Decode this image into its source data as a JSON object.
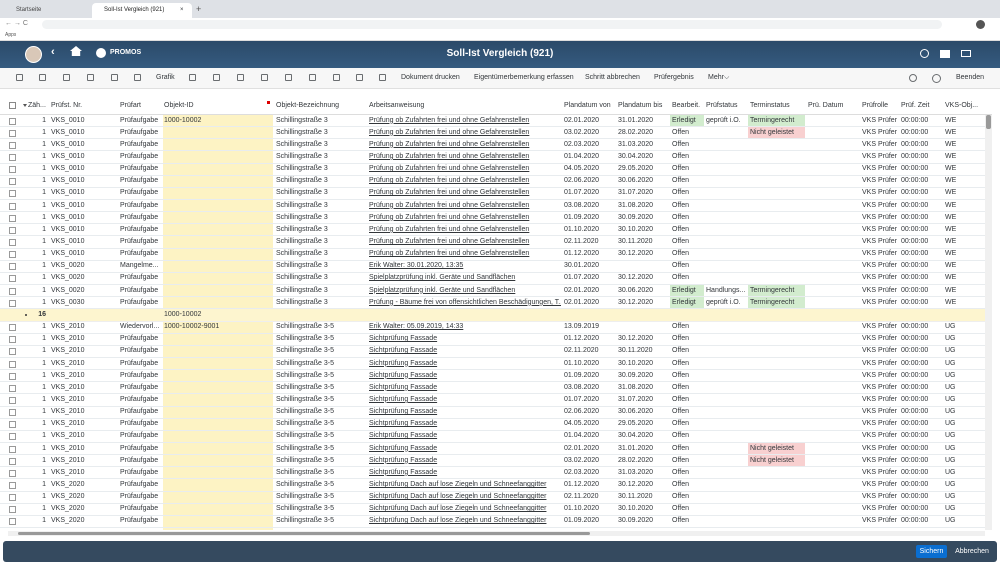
{
  "browser": {
    "tabs": [
      "Startseite",
      "Soll-Ist Vergleich (921)"
    ],
    "bookmark": "Apps"
  },
  "shell": {
    "logo": "PROMOS",
    "title": "Soll-Ist Vergleich (921)"
  },
  "toolbar": {
    "buttons": [
      "Grafik",
      "Dokument drucken",
      "Eigentümerbemerkung erfassen",
      "Schritt abbrechen",
      "Prüfergebnis"
    ],
    "more": "Mehr",
    "exit": "Beenden"
  },
  "table": {
    "columns": [
      "Zäh...",
      "Prüfst. Nr.",
      "Prüfart",
      "Objekt-ID",
      "Objekt-Bezeichnung",
      "Arbeitsanweisung",
      "Plandatum von",
      "Plandatum bis",
      "Bearbeit.",
      "Prüfstatus",
      "Terminstatus",
      "Prü. Datum",
      "Prüfrolle",
      "Prüf. Zeit",
      "VKS-Obj..."
    ],
    "cell_colors": {
      "Erledigt": "#d2ecce",
      "Termingerecht": "#d2ecce",
      "Nicht geleistet": "#f8d0d0"
    },
    "groups": [
      {
        "rows": [
          [
            "1",
            "VKS_0010",
            "Prüfaufgabe",
            "1000-10002",
            "Schillingstraße 3",
            "Prüfung ob Zufahrten frei und ohne Gefahrenstellen",
            "02.01.2020",
            "31.01.2020",
            "Erledigt",
            "geprüft i.O.",
            "Termingerecht",
            null,
            "VKS Prüfer",
            "00:00:00",
            "WE"
          ],
          [
            "1",
            "VKS_0010",
            "Prüfaufgabe",
            null,
            "Schillingstraße 3",
            "Prüfung ob Zufahrten frei und ohne Gefahrenstellen",
            "03.02.2020",
            "28.02.2020",
            "Offen",
            null,
            "Nicht geleistet",
            null,
            "VKS Prüfer",
            "00:00:00",
            "WE"
          ],
          [
            "1",
            "VKS_0010",
            "Prüfaufgabe",
            null,
            "Schillingstraße 3",
            "Prüfung ob Zufahrten frei und ohne Gefahrenstellen",
            "02.03.2020",
            "31.03.2020",
            "Offen",
            null,
            null,
            null,
            "VKS Prüfer",
            "00:00:00",
            "WE"
          ],
          [
            "1",
            "VKS_0010",
            "Prüfaufgabe",
            null,
            "Schillingstraße 3",
            "Prüfung ob Zufahrten frei und ohne Gefahrenstellen",
            "01.04.2020",
            "30.04.2020",
            "Offen",
            null,
            null,
            null,
            "VKS Prüfer",
            "00:00:00",
            "WE"
          ],
          [
            "1",
            "VKS_0010",
            "Prüfaufgabe",
            null,
            "Schillingstraße 3",
            "Prüfung ob Zufahrten frei und ohne Gefahrenstellen",
            "04.05.2020",
            "29.05.2020",
            "Offen",
            null,
            null,
            null,
            "VKS Prüfer",
            "00:00:00",
            "WE"
          ],
          [
            "1",
            "VKS_0010",
            "Prüfaufgabe",
            null,
            "Schillingstraße 3",
            "Prüfung ob Zufahrten frei und ohne Gefahrenstellen",
            "02.06.2020",
            "30.06.2020",
            "Offen",
            null,
            null,
            null,
            "VKS Prüfer",
            "00:00:00",
            "WE"
          ],
          [
            "1",
            "VKS_0010",
            "Prüfaufgabe",
            null,
            "Schillingstraße 3",
            "Prüfung ob Zufahrten frei und ohne Gefahrenstellen",
            "01.07.2020",
            "31.07.2020",
            "Offen",
            null,
            null,
            null,
            "VKS Prüfer",
            "00:00:00",
            "WE"
          ],
          [
            "1",
            "VKS_0010",
            "Prüfaufgabe",
            null,
            "Schillingstraße 3",
            "Prüfung ob Zufahrten frei und ohne Gefahrenstellen",
            "03.08.2020",
            "31.08.2020",
            "Offen",
            null,
            null,
            null,
            "VKS Prüfer",
            "00:00:00",
            "WE"
          ],
          [
            "1",
            "VKS_0010",
            "Prüfaufgabe",
            null,
            "Schillingstraße 3",
            "Prüfung ob Zufahrten frei und ohne Gefahrenstellen",
            "01.09.2020",
            "30.09.2020",
            "Offen",
            null,
            null,
            null,
            "VKS Prüfer",
            "00:00:00",
            "WE"
          ],
          [
            "1",
            "VKS_0010",
            "Prüfaufgabe",
            null,
            "Schillingstraße 3",
            "Prüfung ob Zufahrten frei und ohne Gefahrenstellen",
            "01.10.2020",
            "30.10.2020",
            "Offen",
            null,
            null,
            null,
            "VKS Prüfer",
            "00:00:00",
            "WE"
          ],
          [
            "1",
            "VKS_0010",
            "Prüfaufgabe",
            null,
            "Schillingstraße 3",
            "Prüfung ob Zufahrten frei und ohne Gefahrenstellen",
            "02.11.2020",
            "30.11.2020",
            "Offen",
            null,
            null,
            null,
            "VKS Prüfer",
            "00:00:00",
            "WE"
          ],
          [
            "1",
            "VKS_0010",
            "Prüfaufgabe",
            null,
            "Schillingstraße 3",
            "Prüfung ob Zufahrten frei und ohne Gefahrenstellen",
            "01.12.2020",
            "30.12.2020",
            "Offen",
            null,
            null,
            null,
            "VKS Prüfer",
            "00:00:00",
            "WE"
          ],
          [
            "1",
            "VKS_0020",
            "Mangelme...",
            null,
            "Schillingstraße 3",
            "Erik Walter: 30.01.2020, 13:35",
            "30.01.2020",
            null,
            "Offen",
            null,
            null,
            null,
            "VKS Prüfer",
            "00:00:00",
            "WE"
          ],
          [
            "1",
            "VKS_0020",
            "Prüfaufgabe",
            null,
            "Schillingstraße 3",
            "Spielplatzprüfung inkl. Geräte und Sandflächen",
            "01.07.2020",
            "30.12.2020",
            "Offen",
            null,
            null,
            null,
            "VKS Prüfer",
            "00:00:00",
            "WE"
          ],
          [
            "1",
            "VKS_0020",
            "Prüfaufgabe",
            null,
            "Schillingstraße 3",
            "Spielplatzprüfung inkl. Geräte und Sandflächen",
            "02.01.2020",
            "30.06.2020",
            "Erledigt",
            "Handlungs...",
            "Termingerecht",
            null,
            "VKS Prüfer",
            "00:00:00",
            "WE"
          ],
          [
            "1",
            "VKS_0030",
            "Prüfaufgabe",
            null,
            "Schillingstraße 3",
            "Prüfung - Bäume frei von offensichtlichen Beschädigungen, T...",
            "02.01.2020",
            "30.12.2020",
            "Erledigt",
            "geprüft i.O.",
            "Termingerecht",
            null,
            "VKS Prüfer",
            "00:00:00",
            "WE"
          ]
        ]
      },
      {
        "count": "16",
        "object_id": "1000-10002",
        "rows": [
          [
            "1",
            "VKS_2010",
            "Wiedervorl...",
            "1000-10002-9001",
            "Schillingstraße 3-5",
            "Erik Walter: 05.09.2019, 14:33",
            "13.09.2019",
            null,
            "Offen",
            null,
            null,
            null,
            "VKS Prüfer",
            "00:00:00",
            "UG"
          ],
          [
            "1",
            "VKS_2010",
            "Prüfaufgabe",
            null,
            "Schillingstraße 3-5",
            "Sichtprüfung Fassade",
            "01.12.2020",
            "30.12.2020",
            "Offen",
            null,
            null,
            null,
            "VKS Prüfer",
            "00:00:00",
            "UG"
          ],
          [
            "1",
            "VKS_2010",
            "Prüfaufgabe",
            null,
            "Schillingstraße 3-5",
            "Sichtprüfung Fassade",
            "02.11.2020",
            "30.11.2020",
            "Offen",
            null,
            null,
            null,
            "VKS Prüfer",
            "00:00:00",
            "UG"
          ],
          [
            "1",
            "VKS_2010",
            "Prüfaufgabe",
            null,
            "Schillingstraße 3-5",
            "Sichtprüfung Fassade",
            "01.10.2020",
            "30.10.2020",
            "Offen",
            null,
            null,
            null,
            "VKS Prüfer",
            "00:00:00",
            "UG"
          ],
          [
            "1",
            "VKS_2010",
            "Prüfaufgabe",
            null,
            "Schillingstraße 3-5",
            "Sichtprüfung Fassade",
            "01.09.2020",
            "30.09.2020",
            "Offen",
            null,
            null,
            null,
            "VKS Prüfer",
            "00:00:00",
            "UG"
          ],
          [
            "1",
            "VKS_2010",
            "Prüfaufgabe",
            null,
            "Schillingstraße 3-5",
            "Sichtprüfung Fassade",
            "03.08.2020",
            "31.08.2020",
            "Offen",
            null,
            null,
            null,
            "VKS Prüfer",
            "00:00:00",
            "UG"
          ],
          [
            "1",
            "VKS_2010",
            "Prüfaufgabe",
            null,
            "Schillingstraße 3-5",
            "Sichtprüfung Fassade",
            "01.07.2020",
            "31.07.2020",
            "Offen",
            null,
            null,
            null,
            "VKS Prüfer",
            "00:00:00",
            "UG"
          ],
          [
            "1",
            "VKS_2010",
            "Prüfaufgabe",
            null,
            "Schillingstraße 3-5",
            "Sichtprüfung Fassade",
            "02.06.2020",
            "30.06.2020",
            "Offen",
            null,
            null,
            null,
            "VKS Prüfer",
            "00:00:00",
            "UG"
          ],
          [
            "1",
            "VKS_2010",
            "Prüfaufgabe",
            null,
            "Schillingstraße 3-5",
            "Sichtprüfung Fassade",
            "04.05.2020",
            "29.05.2020",
            "Offen",
            null,
            null,
            null,
            "VKS Prüfer",
            "00:00:00",
            "UG"
          ],
          [
            "1",
            "VKS_2010",
            "Prüfaufgabe",
            null,
            "Schillingstraße 3-5",
            "Sichtprüfung Fassade",
            "01.04.2020",
            "30.04.2020",
            "Offen",
            null,
            null,
            null,
            "VKS Prüfer",
            "00:00:00",
            "UG"
          ],
          [
            "1",
            "VKS_2010",
            "Prüfaufgabe",
            null,
            "Schillingstraße 3-5",
            "Sichtprüfung Fassade",
            "02.01.2020",
            "31.01.2020",
            "Offen",
            null,
            "Nicht geleistet",
            null,
            "VKS Prüfer",
            "00:00:00",
            "UG"
          ],
          [
            "1",
            "VKS_2010",
            "Prüfaufgabe",
            null,
            "Schillingstraße 3-5",
            "Sichtprüfung Fassade",
            "03.02.2020",
            "28.02.2020",
            "Offen",
            null,
            "Nicht geleistet",
            null,
            "VKS Prüfer",
            "00:00:00",
            "UG"
          ],
          [
            "1",
            "VKS_2010",
            "Prüfaufgabe",
            null,
            "Schillingstraße 3-5",
            "Sichtprüfung Fassade",
            "02.03.2020",
            "31.03.2020",
            "Offen",
            null,
            null,
            null,
            "VKS Prüfer",
            "00:00:00",
            "UG"
          ],
          [
            "1",
            "VKS_2020",
            "Prüfaufgabe",
            null,
            "Schillingstraße 3-5",
            "Sichtprüfung Dach auf lose Ziegeln und Schneefanggitter",
            "01.12.2020",
            "30.12.2020",
            "Offen",
            null,
            null,
            null,
            "VKS Prüfer",
            "00:00:00",
            "UG"
          ],
          [
            "1",
            "VKS_2020",
            "Prüfaufgabe",
            null,
            "Schillingstraße 3-5",
            "Sichtprüfung Dach auf lose Ziegeln und Schneefanggitter",
            "02.11.2020",
            "30.11.2020",
            "Offen",
            null,
            null,
            null,
            "VKS Prüfer",
            "00:00:00",
            "UG"
          ],
          [
            "1",
            "VKS_2020",
            "Prüfaufgabe",
            null,
            "Schillingstraße 3-5",
            "Sichtprüfung Dach auf lose Ziegeln und Schneefanggitter",
            "01.10.2020",
            "30.10.2020",
            "Offen",
            null,
            null,
            null,
            "VKS Prüfer",
            "00:00:00",
            "UG"
          ],
          [
            "1",
            "VKS_2020",
            "Prüfaufgabe",
            null,
            "Schillingstraße 3-5",
            "Sichtprüfung Dach auf lose Ziegeln und Schneefanggitter",
            "01.09.2020",
            "30.09.2020",
            "Offen",
            null,
            null,
            null,
            "VKS Prüfer",
            "00:00:00",
            "UG"
          ]
        ]
      }
    ]
  },
  "footer": {
    "save": "Sichern",
    "cancel": "Abbrechen"
  }
}
